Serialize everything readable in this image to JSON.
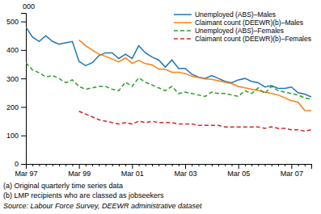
{
  "chart_data": {
    "type": "line",
    "ylabel": "000",
    "categories": [
      "Mar 97",
      null,
      null,
      null,
      null,
      null,
      null,
      null,
      "Mar 99",
      null,
      null,
      null,
      null,
      null,
      null,
      null,
      "Mar 01",
      null,
      null,
      null,
      null,
      null,
      null,
      null,
      "Mar 03",
      null,
      null,
      null,
      null,
      null,
      null,
      null,
      "Mar 05",
      null,
      null,
      null,
      null,
      null,
      null,
      null,
      "Mar 07",
      null,
      null,
      null
    ],
    "series": [
      {
        "name": "Unemployed (ABS)–Males",
        "line_style": "solid",
        "values": [
          480,
          445,
          430,
          450,
          430,
          420,
          425,
          430,
          360,
          345,
          355,
          380,
          390,
          390,
          370,
          385,
          370,
          415,
          390,
          375,
          365,
          340,
          365,
          335,
          335,
          315,
          305,
          300,
          310,
          300,
          290,
          285,
          295,
          300,
          290,
          285,
          270,
          275,
          265,
          265,
          270,
          250,
          245,
          235
        ]
      },
      {
        "name": "Claimant count (DEEWR)(b)–Males",
        "line_style": "solid",
        "values": [
          null,
          null,
          null,
          null,
          null,
          null,
          null,
          null,
          435,
          415,
          400,
          385,
          378,
          368,
          358,
          372,
          353,
          363,
          352,
          348,
          333,
          332,
          322,
          322,
          317,
          308,
          303,
          298,
          297,
          292,
          287,
          282,
          272,
          267,
          262,
          258,
          252,
          247,
          242,
          232,
          222,
          217,
          188,
          187
        ]
      },
      {
        "name": "Unemployed (ABS)–Females",
        "line_style": "dashed",
        "values": [
          355,
          330,
          320,
          305,
          310,
          300,
          285,
          295,
          272,
          262,
          267,
          272,
          272,
          262,
          257,
          287,
          272,
          302,
          287,
          277,
          267,
          257,
          272,
          247,
          252,
          247,
          242,
          237,
          252,
          247,
          247,
          242,
          237,
          257,
          247,
          267,
          247,
          272,
          257,
          252,
          247,
          242,
          232,
          227
        ]
      },
      {
        "name": "Claimant count (DEEWR)(b)–Females",
        "line_style": "dashed",
        "values": [
          null,
          null,
          null,
          null,
          null,
          null,
          null,
          null,
          185,
          175,
          165,
          155,
          150,
          145,
          140,
          145,
          140,
          150,
          145,
          150,
          145,
          145,
          145,
          140,
          140,
          140,
          135,
          135,
          135,
          135,
          130,
          130,
          130,
          130,
          130,
          130,
          125,
          130,
          125,
          125,
          120,
          120,
          115,
          120
        ]
      }
    ],
    "ylim": [
      0,
      530
    ],
    "yticks": [
      0,
      100,
      200,
      300,
      400,
      500
    ],
    "grid": false,
    "legend": "upper right",
    "annotations": [
      "(a) Original quarterly time series data",
      "(b) LMP recipients who are classed as jobseekers",
      "Source: Labour Force Survey, DEEWR administrative dataset"
    ]
  }
}
